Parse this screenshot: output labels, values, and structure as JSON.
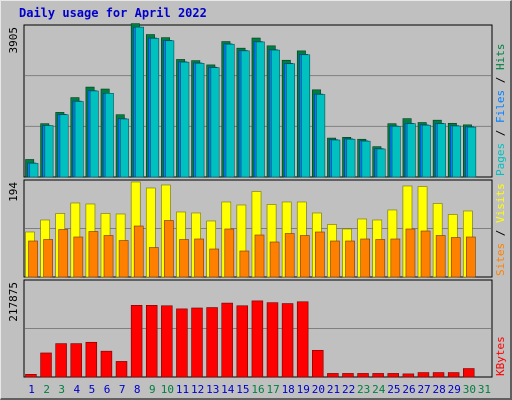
{
  "title": "Daily usage for April 2022",
  "colors": {
    "background": "#c0c0c0",
    "title": "#0000cc",
    "hits": "#008040",
    "files": "#0080ff",
    "pages": "#00c0c0",
    "visits": "#ffff00",
    "sites": "#ff8000",
    "kbytes": "#ff0000",
    "day_weekday": "#0000cc",
    "day_weekend": "#008040"
  },
  "chart_data": [
    {
      "type": "bar",
      "panel": "hits-files-pages",
      "y_max_label": "3905",
      "ylim": [
        0,
        3905
      ],
      "right_labels": [
        "Pages",
        "Files",
        "Hits"
      ],
      "x": [
        "1",
        "2",
        "3",
        "4",
        "5",
        "6",
        "7",
        "8",
        "9",
        "10",
        "11",
        "12",
        "13",
        "14",
        "15",
        "16",
        "17",
        "18",
        "19",
        "20",
        "21",
        "22",
        "23",
        "24",
        "25",
        "26",
        "27",
        "28",
        "29",
        "30",
        "31"
      ],
      "series": [
        {
          "name": "Hits",
          "values": [
            450,
            1370,
            1660,
            2040,
            2310,
            2260,
            1600,
            3940,
            3660,
            3580,
            3020,
            2990,
            2880,
            3480,
            3310,
            3570,
            3370,
            3000,
            3240,
            2240,
            1000,
            1020,
            970,
            780,
            1370,
            1500,
            1400,
            1460,
            1380,
            1340,
            0
          ]
        },
        {
          "name": "Files",
          "values": [
            360,
            1320,
            1610,
            1950,
            2220,
            2150,
            1500,
            3850,
            3570,
            3510,
            2960,
            2930,
            2820,
            3420,
            3250,
            3480,
            3270,
            2920,
            3150,
            2130,
            960,
            980,
            930,
            730,
            1310,
            1380,
            1340,
            1380,
            1320,
            1290,
            0
          ]
        },
        {
          "name": "Pages",
          "values": [
            350,
            1320,
            1600,
            1940,
            2210,
            2150,
            1490,
            3850,
            3560,
            3500,
            2950,
            2920,
            2810,
            3410,
            3240,
            3470,
            3260,
            2910,
            3140,
            2120,
            950,
            970,
            920,
            720,
            1300,
            1370,
            1330,
            1370,
            1310,
            1280,
            0
          ]
        }
      ]
    },
    {
      "type": "bar",
      "panel": "visits-sites",
      "y_max_label": "194",
      "ylim": [
        0,
        194
      ],
      "right_labels": [
        "Sites",
        "Visits"
      ],
      "x": [
        "1",
        "2",
        "3",
        "4",
        "5",
        "6",
        "7",
        "8",
        "9",
        "10",
        "11",
        "12",
        "13",
        "14",
        "15",
        "16",
        "17",
        "18",
        "19",
        "20",
        "21",
        "22",
        "23",
        "24",
        "25",
        "26",
        "27",
        "28",
        "29",
        "30",
        "31"
      ],
      "series": [
        {
          "name": "Visits",
          "values": [
            90,
            114,
            127,
            148,
            146,
            127,
            126,
            190,
            178,
            184,
            130,
            128,
            112,
            150,
            144,
            171,
            145,
            150,
            150,
            128,
            105,
            96,
            116,
            114,
            134,
            182,
            181,
            147,
            125,
            132,
            0
          ]
        },
        {
          "name": "Sites",
          "values": [
            72,
            75,
            95,
            80,
            91,
            83,
            73,
            102,
            59,
            113,
            75,
            76,
            56,
            96,
            52,
            84,
            70,
            87,
            83,
            90,
            72,
            72,
            76,
            75,
            76,
            96,
            92,
            83,
            79,
            80,
            0
          ]
        }
      ]
    },
    {
      "type": "bar",
      "panel": "kbytes",
      "y_max_label": "217875",
      "ylim": [
        0,
        217875
      ],
      "right_labels": [
        "KBytes"
      ],
      "x": [
        "1",
        "2",
        "3",
        "4",
        "5",
        "6",
        "7",
        "8",
        "9",
        "10",
        "11",
        "12",
        "13",
        "14",
        "15",
        "16",
        "17",
        "18",
        "19",
        "20",
        "21",
        "22",
        "23",
        "24",
        "25",
        "26",
        "27",
        "28",
        "29",
        "30",
        "31"
      ],
      "series": [
        {
          "name": "KBytes",
          "values": [
            6000,
            54000,
            75000,
            75000,
            78000,
            58000,
            35000,
            161000,
            161000,
            160000,
            153000,
            155000,
            156000,
            166000,
            160000,
            171000,
            167000,
            165000,
            169000,
            60000,
            8000,
            8000,
            8000,
            8000,
            8000,
            7000,
            10000,
            10000,
            10000,
            19000,
            0
          ]
        }
      ]
    }
  ],
  "day_labels": [
    "1",
    "2",
    "3",
    "4",
    "5",
    "6",
    "7",
    "8",
    "9",
    "10",
    "11",
    "12",
    "13",
    "14",
    "15",
    "16",
    "17",
    "18",
    "19",
    "20",
    "21",
    "22",
    "23",
    "24",
    "25",
    "26",
    "27",
    "28",
    "29",
    "30",
    "31"
  ],
  "weekend_days": [
    "2",
    "3",
    "9",
    "10",
    "16",
    "17",
    "23",
    "24",
    "30",
    "31"
  ]
}
